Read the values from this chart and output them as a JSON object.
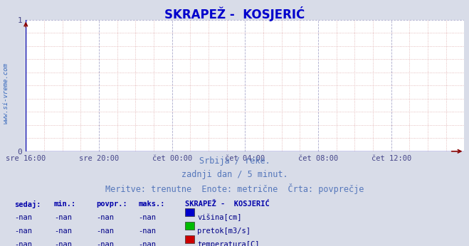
{
  "title": "SKRAPEŽ -  KOSJERIĆ",
  "title_color": "#0000cc",
  "title_fontsize": 12,
  "bg_color": "#d8dce8",
  "plot_bg_color": "#ffffff",
  "grid_color_major": "#aaaacc",
  "grid_color_minor": "#ddaaaa",
  "ylim": [
    0,
    1
  ],
  "yticks": [
    0,
    1
  ],
  "tick_color": "#444488",
  "xtick_labels": [
    "sre 16:00",
    "sre 20:00",
    "čet 00:00",
    "čet 04:00",
    "čet 08:00",
    "čet 12:00"
  ],
  "xtick_positions": [
    0,
    4,
    8,
    12,
    16,
    20
  ],
  "xmax": 24,
  "watermark": "www.si-vreme.com",
  "watermark_color": "#3366bb",
  "subtitle_lines": [
    "Srbija / reke.",
    "zadnji dan / 5 minut.",
    "Meritve: trenutne  Enote: metrične  Črta: povprečje"
  ],
  "subtitle_color": "#5577bb",
  "subtitle_fontsize": 8.5,
  "table_header": [
    "sedaj:",
    "min.:",
    "povpr.:",
    "maks.:",
    "SKRAPEŽ -  KOSJERIĆ"
  ],
  "table_rows": [
    [
      "-nan",
      "-nan",
      "-nan",
      "-nan",
      "višina[cm]",
      "#0000cc"
    ],
    [
      "-nan",
      "-nan",
      "-nan",
      "-nan",
      "pretok[m3/s]",
      "#00bb00"
    ],
    [
      "-nan",
      "-nan",
      "-nan",
      "-nan",
      "temperatura[C]",
      "#cc0000"
    ]
  ],
  "arrow_color": "#880000",
  "axis_color": "#0000aa",
  "table_text_color": "#000088",
  "table_header_color": "#0000aa"
}
